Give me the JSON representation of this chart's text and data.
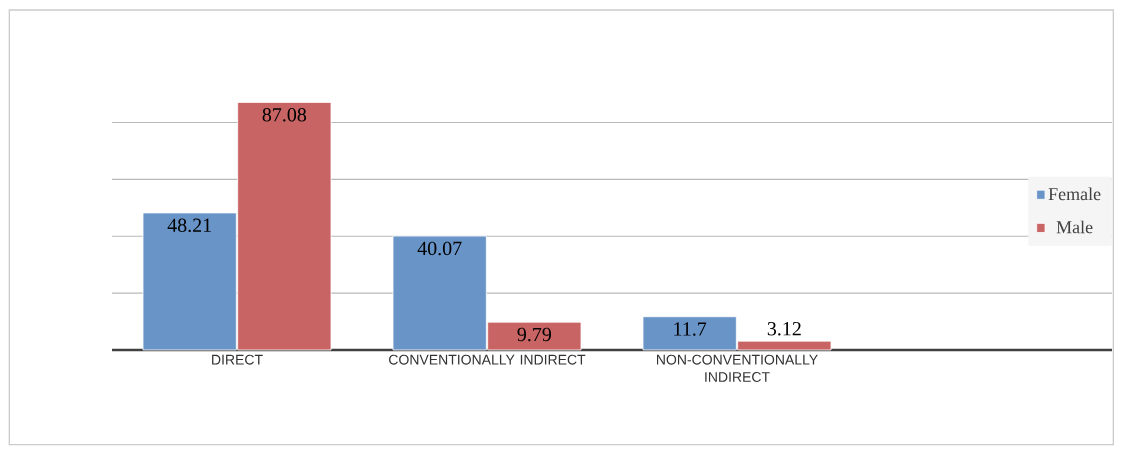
{
  "chart_data": {
    "type": "bar",
    "categories": [
      "DIRECT",
      "CONVENTIONALLY INDIRECT",
      "NON-CONVENTIONALLY INDIRECT"
    ],
    "series": [
      {
        "name": "Female",
        "color": "#6994c8",
        "values": [
          48.21,
          40.07,
          11.7
        ]
      },
      {
        "name": "Male",
        "color": "#c96464",
        "values": [
          87.08,
          9.79,
          3.12
        ]
      }
    ],
    "tick_labels": "x",
    "grid": "y",
    "legend": "right",
    "data_labels": true
  }
}
